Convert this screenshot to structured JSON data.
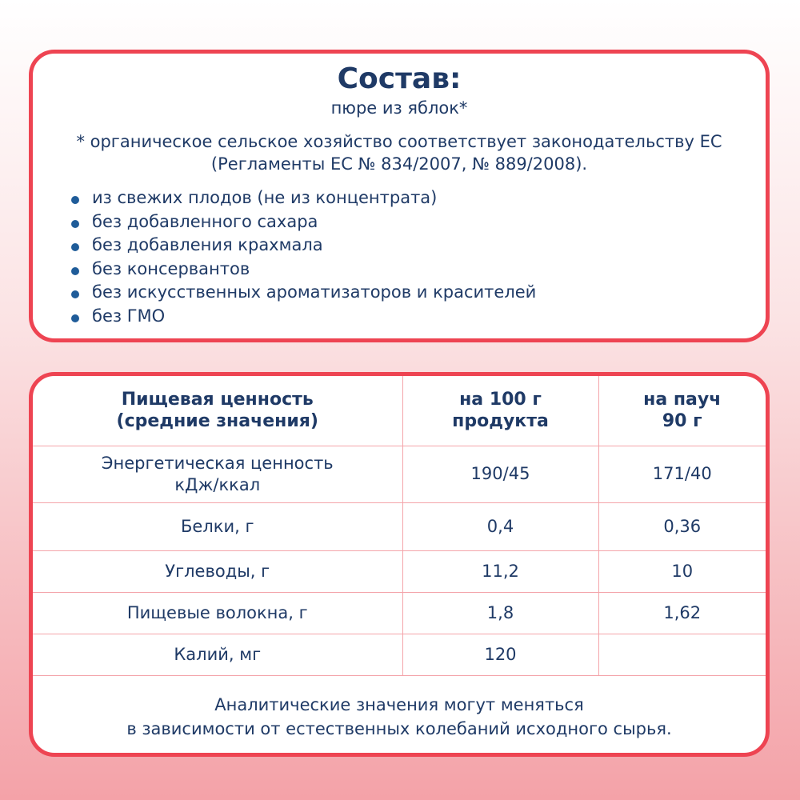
{
  "composition": {
    "title": "Состав:",
    "ingredients": "пюре из яблок*",
    "footnote_line1": "* органическое сельское хозяйство соответствует законодательству ЕС",
    "footnote_line2": "(Регламенты ЕС № 834/2007, № 889/2008).",
    "bullets": [
      "из свежих плодов (не из концентрата)",
      "без добавленного сахара",
      "без добавления крахмала",
      "без консервантов",
      "без искусственных ароматизаторов и красителей",
      "без ГМО"
    ]
  },
  "nutrition": {
    "headers": [
      {
        "l1": "Пищевая ценность",
        "l2": "(средние значения)"
      },
      {
        "l1": "на 100 г",
        "l2": "продукта"
      },
      {
        "l1": "на пауч",
        "l2": "90 г"
      }
    ],
    "rows": [
      {
        "name": "Энергетическая ценность",
        "name2": "кДж/ккал",
        "per100": "190/45",
        "perPouch": "171/40"
      },
      {
        "name": "Белки, г",
        "per100": "0,4",
        "perPouch": "0,36"
      },
      {
        "name": "Углеводы, г",
        "per100": "11,2",
        "perPouch": "10"
      },
      {
        "name": "Пищевые волокна, г",
        "per100": "1,8",
        "perPouch": "1,62"
      },
      {
        "name": "Калий, мг",
        "per100": "120",
        "perPouch": ""
      }
    ],
    "footer_line1": "Аналитические значения могут меняться",
    "footer_line2": "в зависимости от естественных колебаний исходного сырья."
  },
  "colors": {
    "border": "#ee4452",
    "text": "#1f3a66",
    "grid": "#f4a4aa"
  }
}
